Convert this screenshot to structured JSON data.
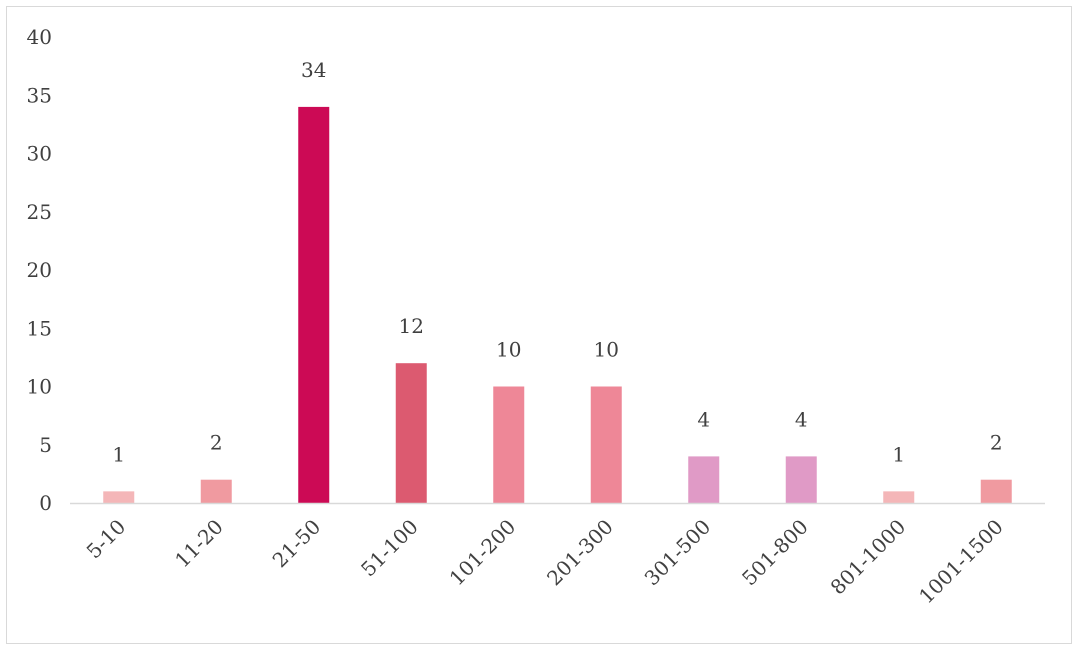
{
  "chart_data": {
    "type": "bar",
    "title": "",
    "xlabel": "",
    "ylabel": "",
    "categories": [
      "5-10",
      "11-20",
      "21-50",
      "51-100",
      "101-200",
      "201-300",
      "301-500",
      "501-800",
      "801-1000",
      "1001-1500"
    ],
    "values": [
      1,
      2,
      34,
      12,
      10,
      10,
      4,
      4,
      1,
      2
    ],
    "colors": [
      "#f4b6b8",
      "#f09aa0",
      "#cc0a55",
      "#dc5a70",
      "#ee8797",
      "#ee8797",
      "#e09ac6",
      "#e09ac6",
      "#f4b6b8",
      "#f09aa0"
    ],
    "ylim": [
      0,
      40
    ],
    "yticks": [
      0,
      5,
      10,
      15,
      20,
      25,
      30,
      35,
      40
    ],
    "grid": false,
    "data_labels": true
  }
}
